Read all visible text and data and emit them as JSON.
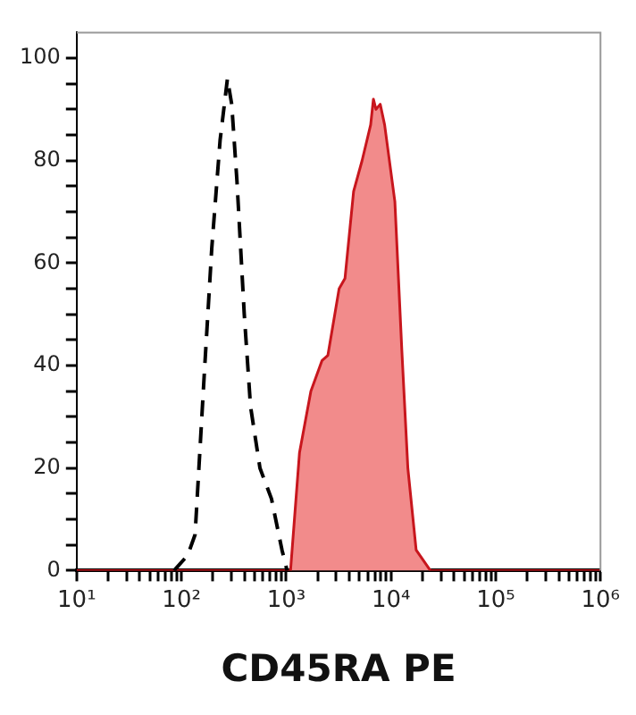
{
  "chart_data": {
    "type": "line",
    "xlabel": "CD45RA PE",
    "log": "x",
    "grid": false,
    "legend": false,
    "xlim": [
      10,
      1000000
    ],
    "xticks": [
      {
        "value": 10,
        "label": "10¹"
      },
      {
        "value": 20,
        "label": null
      },
      {
        "value": 30,
        "label": null
      },
      {
        "value": 40,
        "label": null
      },
      {
        "value": 50,
        "label": null
      },
      {
        "value": 60,
        "label": null
      },
      {
        "value": 70,
        "label": null
      },
      {
        "value": 80,
        "label": null
      },
      {
        "value": 90,
        "label": null
      },
      {
        "value": 100,
        "label": "10²"
      },
      {
        "value": 200,
        "label": null
      },
      {
        "value": 300,
        "label": null
      },
      {
        "value": 400,
        "label": null
      },
      {
        "value": 500,
        "label": null
      },
      {
        "value": 600,
        "label": null
      },
      {
        "value": 700,
        "label": null
      },
      {
        "value": 800,
        "label": null
      },
      {
        "value": 900,
        "label": null
      },
      {
        "value": 1000,
        "label": "10³"
      },
      {
        "value": 2000,
        "label": null
      },
      {
        "value": 3000,
        "label": null
      },
      {
        "value": 4000,
        "label": null
      },
      {
        "value": 5000,
        "label": null
      },
      {
        "value": 6000,
        "label": null
      },
      {
        "value": 7000,
        "label": null
      },
      {
        "value": 8000,
        "label": null
      },
      {
        "value": 9000,
        "label": null
      },
      {
        "value": 10000,
        "label": "10⁴"
      },
      {
        "value": 20000,
        "label": null
      },
      {
        "value": 30000,
        "label": null
      },
      {
        "value": 40000,
        "label": null
      },
      {
        "value": 50000,
        "label": null
      },
      {
        "value": 60000,
        "label": null
      },
      {
        "value": 70000,
        "label": null
      },
      {
        "value": 80000,
        "label": null
      },
      {
        "value": 90000,
        "label": null
      },
      {
        "value": 100000,
        "label": "10⁵"
      },
      {
        "value": 200000,
        "label": null
      },
      {
        "value": 300000,
        "label": null
      },
      {
        "value": 400000,
        "label": null
      },
      {
        "value": 500000,
        "label": null
      },
      {
        "value": 600000,
        "label": null
      },
      {
        "value": 700000,
        "label": null
      },
      {
        "value": 800000,
        "label": null
      },
      {
        "value": 900000,
        "label": null
      },
      {
        "value": 1000000,
        "label": "10⁶"
      }
    ],
    "ylim": [
      0,
      105
    ],
    "yticks": [
      0,
      {
        "value": 5,
        "label": null
      },
      {
        "value": 10,
        "label": null
      },
      {
        "value": 15,
        "label": null
      },
      20,
      {
        "value": 25,
        "label": null
      },
      {
        "value": 30,
        "label": null
      },
      {
        "value": 35,
        "label": null
      },
      40,
      {
        "value": 45,
        "label": null
      },
      {
        "value": 50,
        "label": null
      },
      {
        "value": 55,
        "label": null
      },
      60,
      {
        "value": 65,
        "label": null
      },
      {
        "value": 70,
        "label": null
      },
      {
        "value": 75,
        "label": null
      },
      80,
      {
        "value": 85,
        "label": null
      },
      {
        "value": 90,
        "label": null
      },
      {
        "value": 95,
        "label": null
      },
      100
    ],
    "series": [
      {
        "color": "#000000",
        "line_style": "dashed",
        "marker": "none",
        "x": [
          85,
          115,
          135,
          166,
          195,
          234,
          275,
          302,
          339,
          398,
          457,
          562,
          724,
          912,
          1020
        ],
        "values": [
          0,
          3,
          7,
          39,
          63,
          84,
          96,
          91,
          76,
          50,
          32,
          20,
          14,
          4,
          0
        ]
      },
      {
        "type": "area",
        "color": "#f28b8b",
        "marker": "none",
        "x": [
          10,
          1100,
          1340,
          1720,
          2200,
          2500,
          3200,
          3640,
          4400,
          5300,
          6400,
          6800,
          7200,
          7900,
          8700,
          10900,
          12700,
          14500,
          17400,
          23800,
          1000000
        ],
        "values": [
          0,
          0,
          23,
          35,
          41,
          42,
          55,
          57,
          74,
          80,
          87,
          92,
          90,
          91,
          87,
          72,
          43,
          20,
          4,
          0,
          0
        ]
      }
    ]
  }
}
